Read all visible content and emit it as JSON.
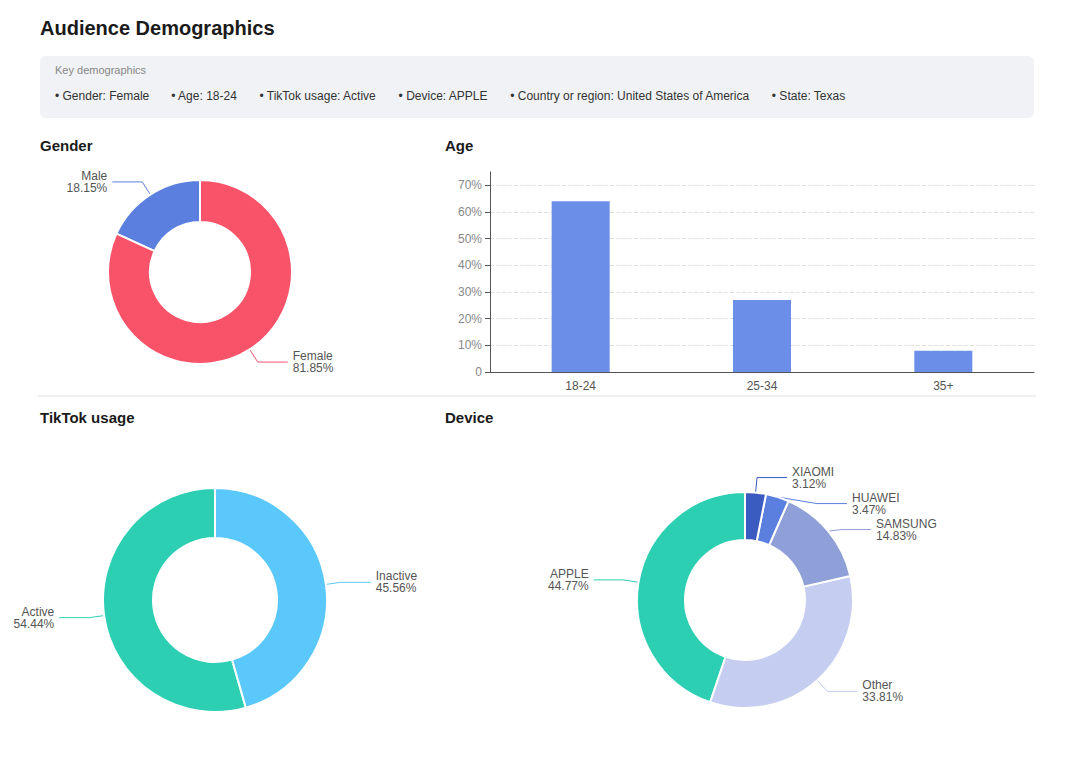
{
  "title": "Audience Demographics",
  "annotations": [
    "Key demographics",
    "• Gender: Female",
    "• Age: 18-24",
    "• TikTok usage: Active",
    "• Device: APPLE",
    "• Country or region: United States of America",
    "• State: Texas"
  ],
  "chart_data": [
    {
      "type": "pie",
      "title": "Gender",
      "categories": [
        "Male",
        "Female"
      ],
      "values": [
        18.15,
        81.85
      ],
      "value_labels": [
        "18.15%",
        "81.85%"
      ],
      "colors": [
        "#5b7fde",
        "#f9536a"
      ],
      "data_labels": true
    },
    {
      "type": "bar",
      "title": "Age",
      "categories": [
        "18-24",
        "25-34",
        "35+"
      ],
      "values": [
        64,
        27,
        8
      ],
      "color": "#6b8ee8",
      "ylim": [
        0,
        75
      ],
      "yticks": [
        0,
        {
          "value": 10,
          "label": "10%"
        },
        {
          "value": 20,
          "label": "20%"
        },
        {
          "value": 30,
          "label": "30%"
        },
        {
          "value": 40,
          "label": "40%"
        },
        {
          "value": 50,
          "label": "50%"
        },
        {
          "value": 60,
          "label": "60%"
        },
        {
          "value": 70,
          "label": "70%"
        }
      ],
      "grid": true
    },
    {
      "type": "pie",
      "title": "TikTok usage",
      "categories": [
        "Active",
        "Inactive"
      ],
      "values": [
        54.44,
        45.56
      ],
      "value_labels": [
        "54.44%",
        "45.56%"
      ],
      "colors": [
        "#2dcfb3",
        "#5ac8fa"
      ],
      "data_labels": true
    },
    {
      "type": "pie",
      "title": "Device",
      "categories": [
        "APPLE",
        "Other",
        "SAMSUNG",
        "HUAWEI",
        "XIAOMI"
      ],
      "values": [
        44.77,
        33.81,
        14.83,
        3.47,
        3.12
      ],
      "value_labels": [
        "44.77%",
        "33.81%",
        "14.83%",
        "3.47%",
        "3.12%"
      ],
      "colors": [
        "#2dcfb3",
        "#c5cdf0",
        "#8fa0d8",
        "#5b7fde",
        "#3a5bbf"
      ],
      "data_labels": true
    }
  ]
}
